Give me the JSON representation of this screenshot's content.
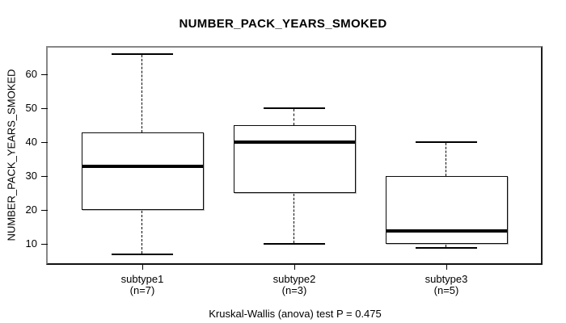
{
  "title": "NUMBER_PACK_YEARS_SMOKED",
  "chart_data": {
    "type": "boxplot",
    "title": "NUMBER_PACK_YEARS_SMOKED",
    "xlabel": "",
    "ylabel": "NUMBER_PACK_YEARS_SMOKED",
    "ylim": [
      4.4,
      67.9
    ],
    "yticks": [
      10,
      20,
      30,
      40,
      50,
      60
    ],
    "grid": false,
    "legend": "none",
    "categories": [
      "subtype1",
      "subtype2",
      "subtype3"
    ],
    "groups": [
      {
        "label": "subtype1",
        "sublabel": "(n=7)",
        "n": 7,
        "whisker_low": 7,
        "q1": 20,
        "median": 33,
        "q3": 43,
        "whisker_high": 66
      },
      {
        "label": "subtype2",
        "sublabel": "(n=3)",
        "n": 3,
        "whisker_low": 10,
        "q1": 25,
        "median": 40,
        "q3": 45,
        "whisker_high": 50
      },
      {
        "label": "subtype3",
        "sublabel": "(n=5)",
        "n": 5,
        "whisker_low": 9,
        "q1": 10,
        "median": 14,
        "q3": 30,
        "whisker_high": 40
      }
    ],
    "footnote": "Kruskal-Wallis (anova) test P = 0.475",
    "colors": {
      "line": "#000000",
      "box_fill": "#ffffff",
      "background": "#ffffff",
      "frame_light": "#878787",
      "frame_dark": "#161616"
    }
  }
}
